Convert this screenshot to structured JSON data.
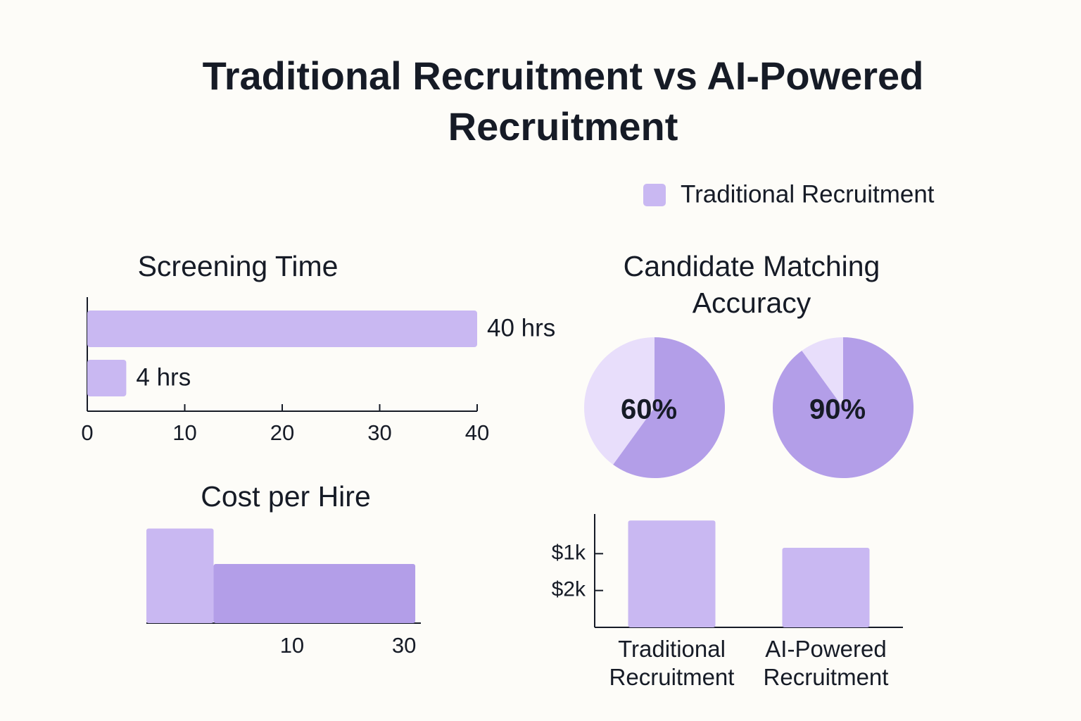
{
  "title": "Traditional Recruitment vs AI-Powered Recruitment",
  "legend": {
    "label": "Traditional Recruitment",
    "color": "#c9b8f2"
  },
  "chart_data": [
    {
      "type": "hbar",
      "title": "Screening Time",
      "values": [
        40,
        4
      ],
      "value_labels": [
        "40 hrs",
        "4 hrs"
      ],
      "color": "#c9b8f2",
      "xlim": [
        0,
        40
      ],
      "xticks": [
        0,
        10,
        20,
        30,
        40
      ]
    },
    {
      "type": "donut",
      "title": "Candidate Matching Accuracy",
      "values": [
        60,
        90
      ],
      "value_labels": [
        "60%",
        "90%"
      ],
      "color": "#b39ee8",
      "track_color": "#e8defb"
    },
    {
      "type": "histogram",
      "title": "Cost per Hire",
      "bins": [
        -16,
        -4,
        32
      ],
      "values": [
        1.6,
        1
      ],
      "colors": [
        "#c9b8f2",
        "#b39ee8"
      ],
      "xlim": [
        -16,
        33
      ],
      "xticks": [
        10,
        30
      ],
      "ylim": [
        0,
        1.75
      ]
    },
    {
      "type": "bar",
      "categories": [
        "Traditional Recruitment",
        "AI-Powered Recruitment"
      ],
      "values": [
        100,
        840
      ],
      "color": "#c9b8f2",
      "ylim": [
        3000,
        0
      ],
      "yticks": [
        {
          "value": 1000,
          "label": "$1k"
        },
        {
          "value": 2000,
          "label": "$2k"
        }
      ]
    }
  ]
}
